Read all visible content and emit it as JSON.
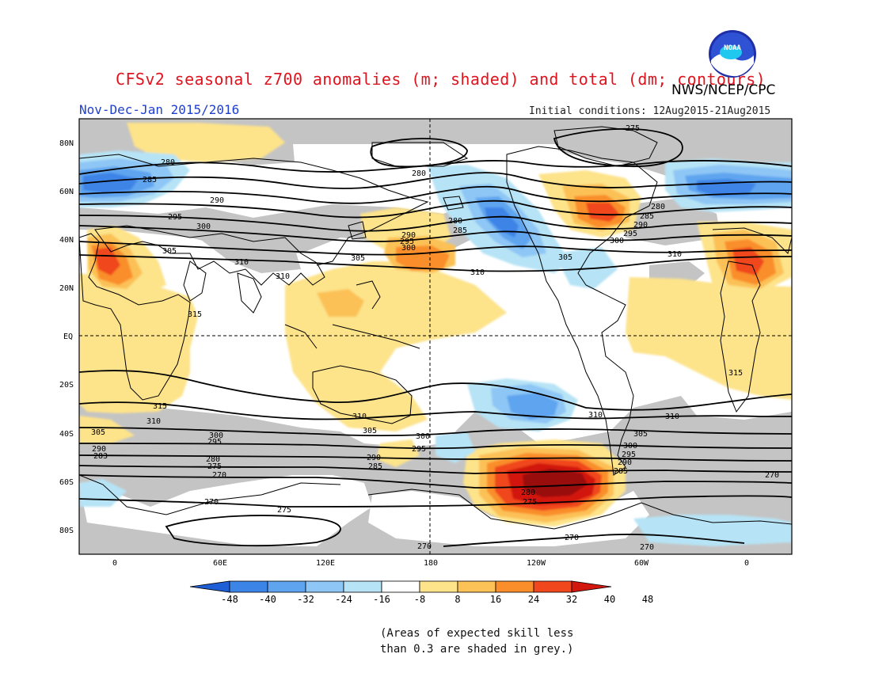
{
  "title": "CFSv2 seasonal z700 anomalies (m; shaded) and total (dm; contours)",
  "agency": "NWS/NCEP/CPC",
  "logo_text": "NOAA",
  "season": "Nov-Dec-Jan 2015/2016",
  "initial_conditions": "Initial conditions: 12Aug2015-21Aug2015",
  "note_line1": "(Areas of expected skill less",
  "note_line2": "than 0.3 are shaded in grey.)",
  "map": {
    "lat_labels": [
      "80N",
      "60N",
      "40N",
      "20N",
      "EQ",
      "20S",
      "40S",
      "60S",
      "80S"
    ],
    "lon_labels": [
      "0",
      "60E",
      "120E",
      "180",
      "120W",
      "60W",
      "0"
    ],
    "contour_labels": [
      "275",
      "280",
      "285",
      "290",
      "295",
      "300",
      "305",
      "310",
      "315",
      "270"
    ]
  },
  "colorbar": {
    "ticks": [
      "-48",
      "-40",
      "-32",
      "-24",
      "-16",
      "-8",
      "8",
      "16",
      "24",
      "32",
      "40",
      "48"
    ],
    "colors": [
      "#1f5fd6",
      "#3c84e6",
      "#5fa4ef",
      "#8ec6f5",
      "#b6e3f5",
      "#ffffff",
      "#fde38a",
      "#fcc157",
      "#f98e2b",
      "#f0471d",
      "#d2170f"
    ]
  }
}
